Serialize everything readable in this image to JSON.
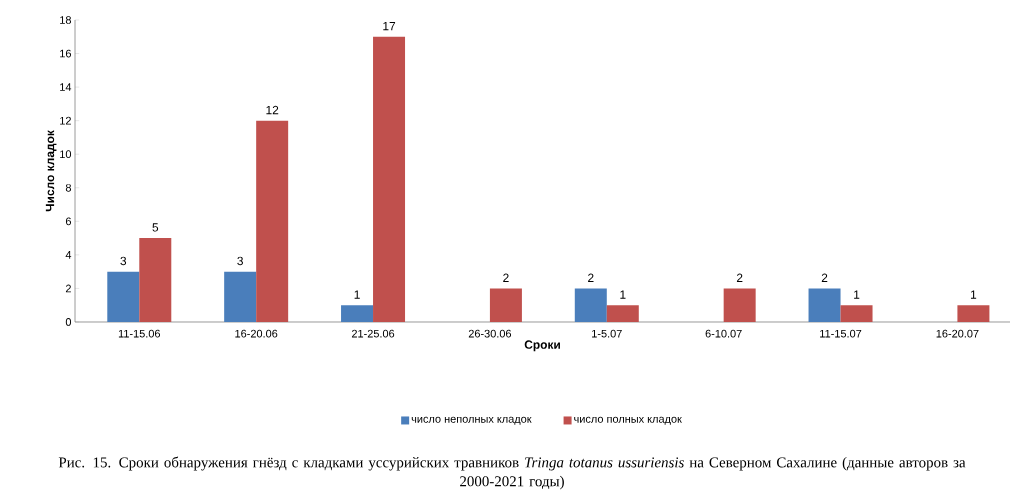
{
  "chart_data": {
    "type": "bar",
    "xlabel": "Сроки",
    "ylabel": "Число кладок",
    "categories": [
      "11-15.06",
      "16-20.06",
      "21-25.06",
      "26-30.06",
      "1-5.07",
      "6-10.07",
      "11-15.07",
      "16-20.07"
    ],
    "series": [
      {
        "name": "число  неполных кладок",
        "color": "#4a7ebb",
        "values": [
          3,
          3,
          1,
          null,
          2,
          null,
          2,
          null
        ]
      },
      {
        "name": "число полных кладок",
        "color": "#c0504d",
        "values": [
          5,
          12,
          17,
          2,
          1,
          2,
          1,
          1
        ]
      }
    ],
    "ylim": [
      0,
      18
    ],
    "yticks": [
      0,
      2,
      4,
      6,
      8,
      10,
      12,
      14,
      16,
      18
    ],
    "data_labels": true,
    "legend": "bottom",
    "grid": false,
    "annotations": [
      "Рис. 15. Сроки обнаружения гнёзд с кладками уссурийских травников *Tringa totanus ussuriensis* на Северном Сахалине (данные авторов за 2000-2021 годы)"
    ]
  }
}
